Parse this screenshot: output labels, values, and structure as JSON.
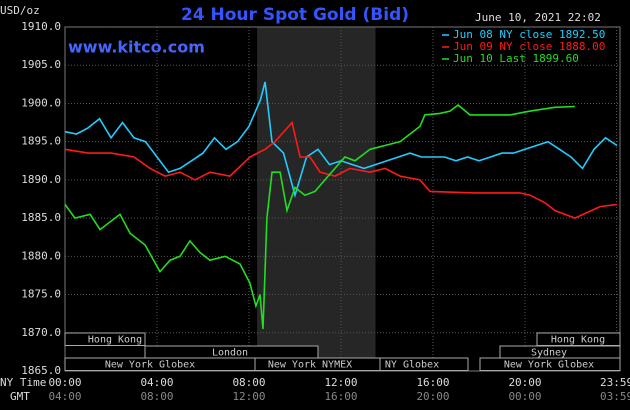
{
  "chart_data": {
    "type": "line",
    "title": "24 Hour Spot Gold (Bid)",
    "y_label": "USD/oz",
    "timestamp": "June 10, 2021 22:02",
    "source": "www.kitco.com",
    "x_row_labels": [
      "NY Time",
      "GMT"
    ],
    "xlim": [
      0,
      24
    ],
    "ylim": [
      1865,
      1910
    ],
    "xticks": [
      {
        "value": 0,
        "label": "00:00"
      },
      {
        "value": 4,
        "label": "04:00"
      },
      {
        "value": 8,
        "label": "08:00"
      },
      {
        "value": 12,
        "label": "12:00"
      },
      {
        "value": 16,
        "label": "16:00"
      },
      {
        "value": 20,
        "label": "20:00"
      },
      {
        "value": 23.98,
        "label": "23:59"
      }
    ],
    "gmt_labels": [
      "04:00",
      "08:00",
      "12:00",
      "16:00",
      "20:00",
      "00:00",
      "03:59"
    ],
    "yticks": [
      {
        "value": 1865,
        "label": "1865.0"
      },
      {
        "value": 1870,
        "label": "1870.0"
      },
      {
        "value": 1875,
        "label": "1875.0"
      },
      {
        "value": 1880,
        "label": "1880.0"
      },
      {
        "value": 1885,
        "label": "1885.0"
      },
      {
        "value": 1890,
        "label": "1890.0"
      },
      {
        "value": 1895,
        "label": "1895.0"
      },
      {
        "value": 1900,
        "label": "1900.0"
      },
      {
        "value": 1905,
        "label": "1905.0"
      },
      {
        "value": 1910,
        "label": "1910.0"
      }
    ],
    "grid": true,
    "highlight": [
      8.35,
      13.5
    ],
    "sessions": [
      "Hong Kong",
      "Hong Kong",
      "London",
      "Sydney",
      "New York Globex",
      "New York NYMEX",
      "NY Globex",
      "New York Globex"
    ],
    "series": [
      {
        "name": "Jun 08 NY close 1892.50",
        "color": "#22ccff",
        "x": [
          0,
          0.5,
          1,
          1.5,
          2,
          2.5,
          3,
          3.5,
          4,
          4.5,
          5,
          5.5,
          6,
          6.5,
          7,
          7.5,
          8,
          8.5,
          8.7,
          9,
          9.5,
          10,
          10.5,
          11,
          11.5,
          12,
          12.5,
          13,
          13.5,
          14,
          14.5,
          15,
          15.5,
          16,
          16.5,
          17,
          17.5,
          18,
          18.5,
          19,
          19.5,
          20,
          20.5,
          21,
          21.5,
          22,
          22.5,
          23,
          23.5,
          24
        ],
        "values": [
          1896.3,
          1896,
          1896.8,
          1898,
          1895.5,
          1897.5,
          1895.5,
          1895,
          1893,
          1891,
          1891.5,
          1892.5,
          1893.5,
          1895.5,
          1894,
          1895,
          1897,
          1900.5,
          1902.8,
          1895,
          1893.5,
          1888,
          1893,
          1894,
          1892,
          1892.5,
          1892,
          1891.5,
          1892,
          1892.5,
          1893,
          1893.5,
          1893,
          1893,
          1893,
          1892.5,
          1893,
          1892.5,
          1893,
          1893.5,
          1893.5,
          1894,
          1894.5,
          1895,
          1894,
          1893,
          1891.5,
          1894,
          1895.5,
          1894.5
        ]
      },
      {
        "name": "Jun 09 NY close 1888.00",
        "color": "#ff1a1a",
        "x": [
          0,
          1,
          2,
          3,
          3.7,
          4.35,
          5,
          5.65,
          6.3,
          7.17,
          8.04,
          8.7,
          9.13,
          9.87,
          10.22,
          10.65,
          11.09,
          11.74,
          12.39,
          13.26,
          13.91,
          14.57,
          15.43,
          15.87,
          17.83,
          19.78,
          20.22,
          20.87,
          21.3,
          22.17,
          23.26,
          24
        ],
        "values": [
          1894,
          1893.5,
          1893.5,
          1893,
          1891.5,
          1890.5,
          1891,
          1890,
          1891,
          1890.5,
          1893,
          1894,
          1895,
          1897.5,
          1893,
          1893,
          1891,
          1890.5,
          1891.5,
          1891,
          1891.5,
          1890.5,
          1890,
          1888.5,
          1888.3,
          1888.3,
          1888,
          1887,
          1886,
          1885,
          1886.5,
          1886.8
        ]
      },
      {
        "name": "Jun 10 Last 1899.60",
        "color": "#22dd22",
        "x": [
          0,
          0.43,
          1.09,
          1.52,
          2.39,
          2.83,
          3.48,
          4.13,
          4.57,
          5,
          5.43,
          5.87,
          6.3,
          6.96,
          7.61,
          8.04,
          8.3,
          8.48,
          8.61,
          8.78,
          9,
          9.35,
          9.65,
          10,
          10.43,
          10.87,
          11.3,
          12.17,
          12.61,
          13.26,
          13.91,
          14.57,
          15,
          15.43,
          15.65,
          16.3,
          16.74,
          17.09,
          17.61,
          18.48,
          19.35,
          20.22,
          21.3,
          22.17
        ],
        "values": [
          1886.8,
          1885,
          1885.5,
          1883.5,
          1885.5,
          1883,
          1881.5,
          1878,
          1879.5,
          1880,
          1882,
          1880.5,
          1879.5,
          1880,
          1879,
          1876.5,
          1873.5,
          1875,
          1870.5,
          1885,
          1891,
          1891,
          1886,
          1889,
          1888,
          1888.5,
          1890,
          1893,
          1892.5,
          1894,
          1894.5,
          1895,
          1896,
          1897,
          1898.5,
          1898.7,
          1899,
          1899.8,
          1898.5,
          1898.5,
          1898.5,
          1899,
          1899.5,
          1899.6
        ]
      }
    ]
  }
}
